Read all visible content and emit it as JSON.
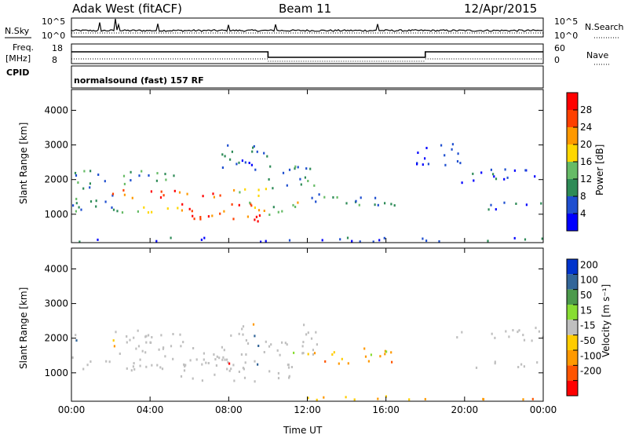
{
  "header": {
    "station": "Adak West (fitACF)",
    "beam": "Beam 11",
    "date": "12/Apr/2015"
  },
  "panels": {
    "nsky": {
      "label": "N.Sky",
      "right_label": "N.Search",
      "left_ticks": [
        "10^5",
        "10^0"
      ],
      "right_ticks": [
        "10^5",
        "10^0"
      ]
    },
    "freq": {
      "label_line1": "Freq.",
      "label_line2": "[MHz]",
      "right_label": "Nave",
      "left_ticks": [
        "18",
        "8"
      ],
      "right_ticks": [
        "60",
        "0"
      ]
    },
    "cpid": {
      "label": "CPID",
      "text": "normalsound (fast) 157 RF"
    }
  },
  "colors": {
    "power_scale": [
      "#0000ff",
      "#1f4fd0",
      "#2e8b57",
      "#66bb66",
      "#ffd700",
      "#ff9900",
      "#ff4000",
      "#ff0000"
    ],
    "velocity_scale": [
      "#0033cc",
      "#336699",
      "#4c9a4c",
      "#88dd33",
      "#bfbfbf",
      "#ffcc00",
      "#ff9900",
      "#ff5500",
      "#ff0000"
    ],
    "ground_scatter": "#bfbfbf"
  },
  "chart_data": [
    {
      "type": "heatmap",
      "name": "power",
      "xlabel": "",
      "ylabel": "Slant Range [km]",
      "x_ticks": [
        "00:00",
        "04:00",
        "08:00",
        "12:00",
        "16:00",
        "20:00",
        "00:00"
      ],
      "x_hours": [
        0,
        4,
        8,
        12,
        16,
        20,
        24
      ],
      "xlim": [
        0,
        24
      ],
      "y_ticks": [
        1000,
        2000,
        3000,
        4000
      ],
      "ylim": [
        180,
        4600
      ],
      "colorbar": {
        "label": "Power [dB]",
        "ticks": [
          4,
          8,
          12,
          16,
          20,
          24,
          28
        ],
        "range": [
          0,
          32
        ]
      },
      "regions": [
        {
          "t0": 0.0,
          "t1": 6.0,
          "r0": 1850,
          "r1": 2250,
          "level": 11
        },
        {
          "t0": 0.0,
          "t1": 2.5,
          "r0": 1050,
          "r1": 1800,
          "level": 9
        },
        {
          "t0": 1.0,
          "t1": 8.5,
          "r0": 1450,
          "r1": 1700,
          "level": 26
        },
        {
          "t0": 8.0,
          "t1": 10.0,
          "r0": 1500,
          "r1": 1800,
          "level": 18
        },
        {
          "t0": 2.0,
          "t1": 5.5,
          "r0": 1050,
          "r1": 1300,
          "level": 14
        },
        {
          "t0": 5.5,
          "t1": 10.0,
          "r0": 750,
          "r1": 1350,
          "level": 26
        },
        {
          "t0": 9.0,
          "t1": 11.5,
          "r0": 850,
          "r1": 1350,
          "level": 16
        },
        {
          "t0": 7.5,
          "t1": 10.0,
          "r0": 2100,
          "r1": 3000,
          "level": 6
        },
        {
          "t0": 10.0,
          "t1": 12.5,
          "r0": 1650,
          "r1": 2400,
          "level": 9
        },
        {
          "t0": 12.0,
          "t1": 17.0,
          "r0": 1250,
          "r1": 1650,
          "level": 10
        },
        {
          "t0": 17.5,
          "t1": 20.0,
          "r0": 2400,
          "r1": 3100,
          "level": 5
        },
        {
          "t0": 19.5,
          "t1": 24.0,
          "r0": 1900,
          "r1": 2300,
          "level": 6
        },
        {
          "t0": 20.5,
          "t1": 24.0,
          "r0": 1100,
          "r1": 1350,
          "level": 8
        },
        {
          "t0": 0.0,
          "t1": 24.0,
          "r0": 200,
          "r1": 320,
          "level": 5
        }
      ]
    },
    {
      "type": "heatmap",
      "name": "velocity",
      "xlabel": "Time UT",
      "ylabel": "Slant Range [km]",
      "x_ticks": [
        "00:00",
        "04:00",
        "08:00",
        "12:00",
        "16:00",
        "20:00",
        "00:00"
      ],
      "x_hours": [
        0,
        4,
        8,
        12,
        16,
        20,
        24
      ],
      "xlim": [
        0,
        24
      ],
      "y_ticks": [
        1000,
        2000,
        3000,
        4000
      ],
      "ylim": [
        180,
        4600
      ],
      "colorbar": {
        "label": "Velocity [m s⁻¹]",
        "ticks": [
          200,
          100,
          50,
          15,
          -15,
          -50,
          -100,
          -200
        ]
      },
      "regions": [
        {
          "t0": 0.0,
          "t1": 6.0,
          "r0": 1850,
          "r1": 2250,
          "v": 0
        },
        {
          "t0": 0.0,
          "t1": 8.5,
          "r0": 1050,
          "r1": 1800,
          "v": 0
        },
        {
          "t0": 5.5,
          "t1": 11.5,
          "r0": 750,
          "r1": 1350,
          "v": 0
        },
        {
          "t0": 8.0,
          "t1": 12.5,
          "r0": 1500,
          "r1": 2400,
          "v": 0
        },
        {
          "t0": 12.0,
          "t1": 14.0,
          "r0": 1250,
          "r1": 1650,
          "v": -60
        },
        {
          "t0": 14.0,
          "t1": 16.5,
          "r0": 1200,
          "r1": 1750,
          "v": -90
        },
        {
          "t0": 19.5,
          "t1": 24.0,
          "r0": 1900,
          "r1": 2300,
          "v": 0
        },
        {
          "t0": 20.5,
          "t1": 24.0,
          "r0": 1100,
          "r1": 1350,
          "v": 0
        },
        {
          "t0": 11.0,
          "t1": 24.0,
          "r0": 200,
          "r1": 320,
          "v": -60
        }
      ]
    }
  ]
}
